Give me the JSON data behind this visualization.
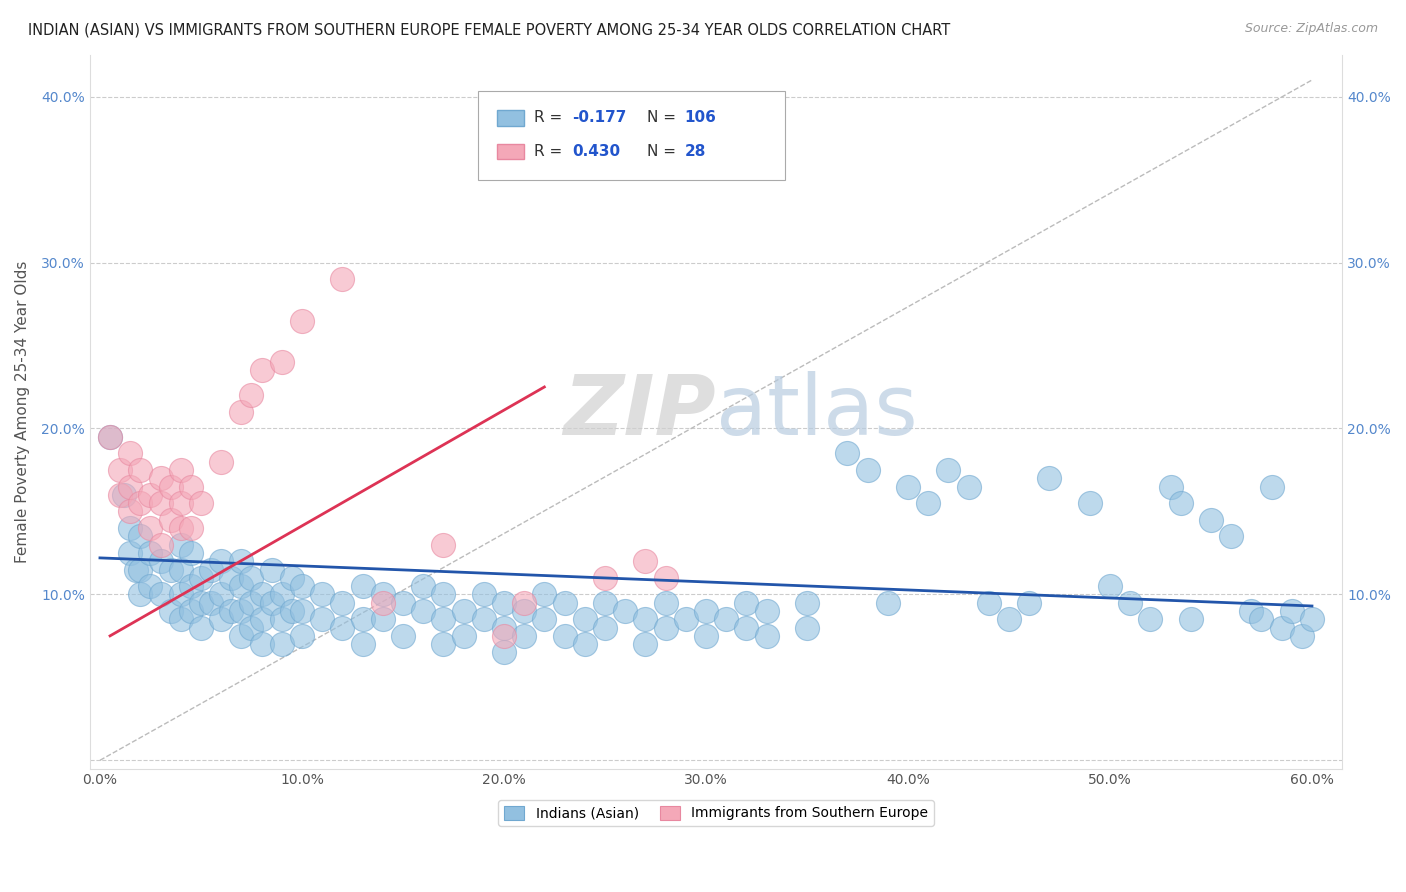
{
  "title": "INDIAN (ASIAN) VS IMMIGRANTS FROM SOUTHERN EUROPE FEMALE POVERTY AMONG 25-34 YEAR OLDS CORRELATION CHART",
  "source": "Source: ZipAtlas.com",
  "ylabel": "Female Poverty Among 25-34 Year Olds",
  "xlim": [
    -0.005,
    0.615
  ],
  "ylim": [
    -0.005,
    0.425
  ],
  "xticks": [
    0.0,
    0.1,
    0.2,
    0.3,
    0.4,
    0.5,
    0.6
  ],
  "yticks": [
    0.0,
    0.1,
    0.2,
    0.3,
    0.4
  ],
  "xticklabels": [
    "0.0%",
    "10.0%",
    "20.0%",
    "30.0%",
    "40.0%",
    "50.0%",
    "60.0%"
  ],
  "yticklabels_left": [
    "",
    "10.0%",
    "20.0%",
    "30.0%",
    "40.0%"
  ],
  "yticklabels_right": [
    "",
    "10.0%",
    "20.0%",
    "30.0%",
    "40.0%"
  ],
  "legend_label1": "Indians (Asian)",
  "legend_label2": "Immigrants from Southern Europe",
  "blue_color": "#92C0E0",
  "pink_color": "#F4A8B8",
  "blue_edge_color": "#70A8D0",
  "pink_edge_color": "#E888A0",
  "blue_line_color": "#2255AA",
  "pink_line_color": "#DD3355",
  "watermark_zip": "ZIP",
  "watermark_atlas": "atlas",
  "background_color": "#FFFFFF",
  "grid_color": "#CCCCCC",
  "blue_line": [
    [
      0.0,
      0.122
    ],
    [
      0.6,
      0.093
    ]
  ],
  "pink_line": [
    [
      0.005,
      0.075
    ],
    [
      0.22,
      0.225
    ]
  ],
  "diag_line": [
    [
      0.0,
      0.0
    ],
    [
      0.6,
      0.41
    ]
  ],
  "blue_points": [
    [
      0.005,
      0.195
    ],
    [
      0.012,
      0.16
    ],
    [
      0.015,
      0.14
    ],
    [
      0.015,
      0.125
    ],
    [
      0.018,
      0.115
    ],
    [
      0.02,
      0.135
    ],
    [
      0.02,
      0.115
    ],
    [
      0.02,
      0.1
    ],
    [
      0.025,
      0.125
    ],
    [
      0.025,
      0.105
    ],
    [
      0.03,
      0.12
    ],
    [
      0.03,
      0.1
    ],
    [
      0.035,
      0.115
    ],
    [
      0.035,
      0.09
    ],
    [
      0.04,
      0.13
    ],
    [
      0.04,
      0.115
    ],
    [
      0.04,
      0.1
    ],
    [
      0.04,
      0.085
    ],
    [
      0.045,
      0.125
    ],
    [
      0.045,
      0.105
    ],
    [
      0.045,
      0.09
    ],
    [
      0.05,
      0.11
    ],
    [
      0.05,
      0.095
    ],
    [
      0.05,
      0.08
    ],
    [
      0.055,
      0.115
    ],
    [
      0.055,
      0.095
    ],
    [
      0.06,
      0.12
    ],
    [
      0.06,
      0.1
    ],
    [
      0.06,
      0.085
    ],
    [
      0.065,
      0.11
    ],
    [
      0.065,
      0.09
    ],
    [
      0.07,
      0.12
    ],
    [
      0.07,
      0.105
    ],
    [
      0.07,
      0.09
    ],
    [
      0.07,
      0.075
    ],
    [
      0.075,
      0.11
    ],
    [
      0.075,
      0.095
    ],
    [
      0.075,
      0.08
    ],
    [
      0.08,
      0.1
    ],
    [
      0.08,
      0.085
    ],
    [
      0.08,
      0.07
    ],
    [
      0.085,
      0.115
    ],
    [
      0.085,
      0.095
    ],
    [
      0.09,
      0.1
    ],
    [
      0.09,
      0.085
    ],
    [
      0.09,
      0.07
    ],
    [
      0.095,
      0.11
    ],
    [
      0.095,
      0.09
    ],
    [
      0.1,
      0.105
    ],
    [
      0.1,
      0.09
    ],
    [
      0.1,
      0.075
    ],
    [
      0.11,
      0.1
    ],
    [
      0.11,
      0.085
    ],
    [
      0.12,
      0.095
    ],
    [
      0.12,
      0.08
    ],
    [
      0.13,
      0.105
    ],
    [
      0.13,
      0.085
    ],
    [
      0.13,
      0.07
    ],
    [
      0.14,
      0.1
    ],
    [
      0.14,
      0.085
    ],
    [
      0.15,
      0.095
    ],
    [
      0.15,
      0.075
    ],
    [
      0.16,
      0.105
    ],
    [
      0.16,
      0.09
    ],
    [
      0.17,
      0.1
    ],
    [
      0.17,
      0.085
    ],
    [
      0.17,
      0.07
    ],
    [
      0.18,
      0.09
    ],
    [
      0.18,
      0.075
    ],
    [
      0.19,
      0.1
    ],
    [
      0.19,
      0.085
    ],
    [
      0.2,
      0.095
    ],
    [
      0.2,
      0.08
    ],
    [
      0.2,
      0.065
    ],
    [
      0.21,
      0.09
    ],
    [
      0.21,
      0.075
    ],
    [
      0.22,
      0.1
    ],
    [
      0.22,
      0.085
    ],
    [
      0.23,
      0.095
    ],
    [
      0.23,
      0.075
    ],
    [
      0.24,
      0.085
    ],
    [
      0.24,
      0.07
    ],
    [
      0.25,
      0.095
    ],
    [
      0.25,
      0.08
    ],
    [
      0.26,
      0.09
    ],
    [
      0.27,
      0.085
    ],
    [
      0.27,
      0.07
    ],
    [
      0.28,
      0.095
    ],
    [
      0.28,
      0.08
    ],
    [
      0.29,
      0.085
    ],
    [
      0.3,
      0.09
    ],
    [
      0.3,
      0.075
    ],
    [
      0.31,
      0.085
    ],
    [
      0.32,
      0.095
    ],
    [
      0.32,
      0.08
    ],
    [
      0.33,
      0.09
    ],
    [
      0.33,
      0.075
    ],
    [
      0.35,
      0.095
    ],
    [
      0.35,
      0.08
    ],
    [
      0.37,
      0.185
    ],
    [
      0.38,
      0.175
    ],
    [
      0.39,
      0.095
    ],
    [
      0.4,
      0.165
    ],
    [
      0.41,
      0.155
    ],
    [
      0.42,
      0.175
    ],
    [
      0.43,
      0.165
    ],
    [
      0.44,
      0.095
    ],
    [
      0.45,
      0.085
    ],
    [
      0.46,
      0.095
    ],
    [
      0.47,
      0.17
    ],
    [
      0.49,
      0.155
    ],
    [
      0.5,
      0.105
    ],
    [
      0.51,
      0.095
    ],
    [
      0.52,
      0.085
    ],
    [
      0.53,
      0.165
    ],
    [
      0.535,
      0.155
    ],
    [
      0.54,
      0.085
    ],
    [
      0.55,
      0.145
    ],
    [
      0.56,
      0.135
    ],
    [
      0.57,
      0.09
    ],
    [
      0.575,
      0.085
    ],
    [
      0.58,
      0.165
    ],
    [
      0.585,
      0.08
    ],
    [
      0.59,
      0.09
    ],
    [
      0.595,
      0.075
    ],
    [
      0.6,
      0.085
    ]
  ],
  "pink_points": [
    [
      0.005,
      0.195
    ],
    [
      0.01,
      0.175
    ],
    [
      0.01,
      0.16
    ],
    [
      0.015,
      0.185
    ],
    [
      0.015,
      0.165
    ],
    [
      0.015,
      0.15
    ],
    [
      0.02,
      0.175
    ],
    [
      0.02,
      0.155
    ],
    [
      0.025,
      0.16
    ],
    [
      0.025,
      0.14
    ],
    [
      0.03,
      0.17
    ],
    [
      0.03,
      0.155
    ],
    [
      0.03,
      0.13
    ],
    [
      0.035,
      0.165
    ],
    [
      0.035,
      0.145
    ],
    [
      0.04,
      0.175
    ],
    [
      0.04,
      0.155
    ],
    [
      0.04,
      0.14
    ],
    [
      0.045,
      0.165
    ],
    [
      0.045,
      0.14
    ],
    [
      0.05,
      0.155
    ],
    [
      0.06,
      0.18
    ],
    [
      0.07,
      0.21
    ],
    [
      0.075,
      0.22
    ],
    [
      0.08,
      0.235
    ],
    [
      0.09,
      0.24
    ],
    [
      0.1,
      0.265
    ],
    [
      0.12,
      0.29
    ],
    [
      0.14,
      0.095
    ],
    [
      0.17,
      0.13
    ],
    [
      0.2,
      0.075
    ],
    [
      0.21,
      0.095
    ],
    [
      0.25,
      0.11
    ],
    [
      0.27,
      0.12
    ],
    [
      0.28,
      0.11
    ]
  ]
}
